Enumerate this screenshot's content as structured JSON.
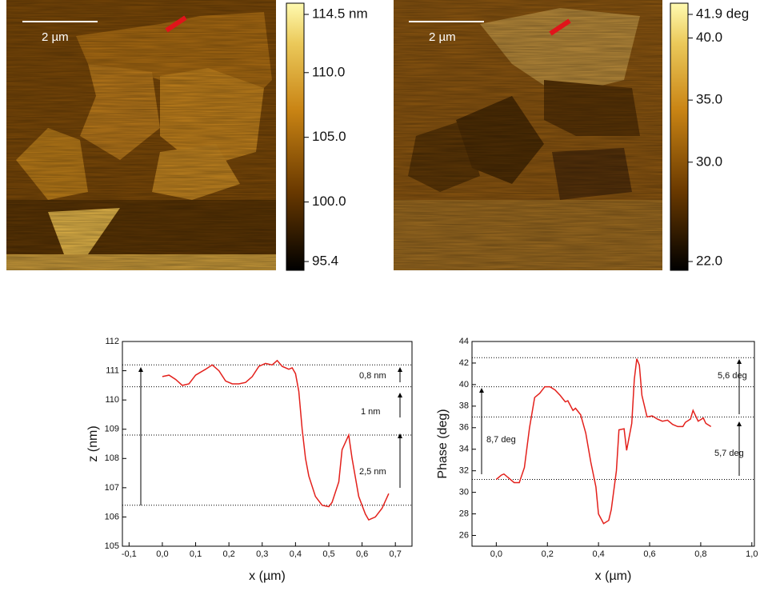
{
  "chart_data": [
    {
      "type": "afm-image",
      "scale_label": "2 µm",
      "colorbar_lim": [
        95.4,
        114.5
      ],
      "colorbar_ticks": [
        {
          "value": 114.5,
          "label": "114.5 nm"
        },
        {
          "value": 110.0,
          "label": "110.0"
        },
        {
          "value": 105.0,
          "label": "105.0"
        },
        {
          "value": 100.0,
          "label": "100.0"
        },
        {
          "value": 95.4,
          "label": "95.4"
        }
      ]
    },
    {
      "type": "afm-image",
      "scale_label": "2 µm",
      "colorbar_lim": [
        22.0,
        41.9
      ],
      "colorbar_ticks": [
        {
          "value": 41.9,
          "label": "41.9 deg"
        },
        {
          "value": 40.0,
          "label": "40.0"
        },
        {
          "value": 35.0,
          "label": "35.0"
        },
        {
          "value": 30.0,
          "label": "30.0"
        },
        {
          "value": 22.0,
          "label": "22.0"
        }
      ]
    },
    {
      "type": "line",
      "x_label": "x (µm)",
      "y_label": "z (nm)",
      "x": [
        0.0,
        0.02,
        0.04,
        0.06,
        0.08,
        0.1,
        0.13,
        0.15,
        0.17,
        0.19,
        0.21,
        0.23,
        0.25,
        0.27,
        0.29,
        0.31,
        0.33,
        0.345,
        0.36,
        0.38,
        0.39,
        0.4,
        0.41,
        0.42,
        0.43,
        0.44,
        0.46,
        0.48,
        0.5,
        0.51,
        0.53,
        0.54,
        0.56,
        0.57,
        0.59,
        0.61,
        0.62,
        0.64,
        0.66,
        0.68
      ],
      "series": [
        {
          "color": "#e3201b",
          "values": [
            110.8,
            110.85,
            110.7,
            110.5,
            110.55,
            110.85,
            111.05,
            111.2,
            111.0,
            110.65,
            110.55,
            110.55,
            110.6,
            110.8,
            111.15,
            111.25,
            111.2,
            111.35,
            111.15,
            111.05,
            111.1,
            110.9,
            110.3,
            109.0,
            108.0,
            107.4,
            106.7,
            106.4,
            106.35,
            106.5,
            107.2,
            108.3,
            108.8,
            108.0,
            106.7,
            106.1,
            105.9,
            106.0,
            106.3,
            106.8
          ]
        }
      ],
      "xlim": [
        -0.12,
        0.75
      ],
      "ylim": [
        105,
        112
      ],
      "xticks": [
        {
          "value": -0.1,
          "label": "-0,1"
        },
        {
          "value": 0.0,
          "label": "0,0"
        },
        {
          "value": 0.1,
          "label": "0,1"
        },
        {
          "value": 0.2,
          "label": "0,2"
        },
        {
          "value": 0.3,
          "label": "0,3"
        },
        {
          "value": 0.4,
          "label": "0,4"
        },
        {
          "value": 0.5,
          "label": "0,5"
        },
        {
          "value": 0.6,
          "label": "0,6"
        },
        {
          "value": 0.7,
          "label": "0,7"
        }
      ],
      "yticks": [
        105,
        106,
        107,
        108,
        109,
        110,
        111,
        112
      ],
      "ref_lines": [
        111.2,
        110.45,
        108.8,
        106.4
      ],
      "annotations": [
        "0,8 nm",
        "1 nm",
        "2,5 nm"
      ]
    },
    {
      "type": "line",
      "x_label": "x (µm)",
      "y_label": "Phase (deg)",
      "x": [
        0.0,
        0.02,
        0.03,
        0.05,
        0.07,
        0.09,
        0.11,
        0.13,
        0.15,
        0.17,
        0.19,
        0.21,
        0.23,
        0.25,
        0.27,
        0.28,
        0.3,
        0.31,
        0.33,
        0.35,
        0.37,
        0.39,
        0.4,
        0.42,
        0.44,
        0.45,
        0.47,
        0.48,
        0.5,
        0.51,
        0.53,
        0.54,
        0.55,
        0.56,
        0.57,
        0.59,
        0.61,
        0.63,
        0.65,
        0.67,
        0.69,
        0.71,
        0.73,
        0.74,
        0.76,
        0.77,
        0.79,
        0.81,
        0.82,
        0.84
      ],
      "series": [
        {
          "color": "#e3201b",
          "values": [
            31.2,
            31.6,
            31.7,
            31.3,
            30.9,
            30.9,
            32.3,
            36.0,
            38.8,
            39.2,
            39.8,
            39.8,
            39.5,
            39.0,
            38.4,
            38.5,
            37.6,
            37.8,
            37.2,
            35.5,
            32.8,
            30.5,
            28.0,
            27.1,
            27.4,
            28.4,
            32.0,
            35.8,
            35.9,
            33.9,
            36.4,
            40.5,
            42.4,
            41.8,
            39.0,
            37.0,
            37.1,
            36.8,
            36.6,
            36.7,
            36.3,
            36.1,
            36.1,
            36.5,
            36.8,
            37.6,
            36.6,
            36.9,
            36.4,
            36.1
          ]
        }
      ],
      "xlim": [
        -0.095,
        1.01
      ],
      "ylim": [
        25,
        44
      ],
      "xticks": [
        {
          "value": 0.0,
          "label": "0,0"
        },
        {
          "value": 0.2,
          "label": "0,2"
        },
        {
          "value": 0.4,
          "label": "0,4"
        },
        {
          "value": 0.6,
          "label": "0,6"
        },
        {
          "value": 0.8,
          "label": "0,8"
        },
        {
          "value": 1.0,
          "label": "1,0"
        }
      ],
      "yticks": [
        26,
        28,
        30,
        32,
        34,
        36,
        38,
        40,
        42,
        44
      ],
      "ref_lines": [
        42.5,
        39.8,
        37.0,
        31.2
      ],
      "annotations": [
        "5,6 deg",
        "5,7 deg",
        "8,7 deg"
      ]
    }
  ]
}
